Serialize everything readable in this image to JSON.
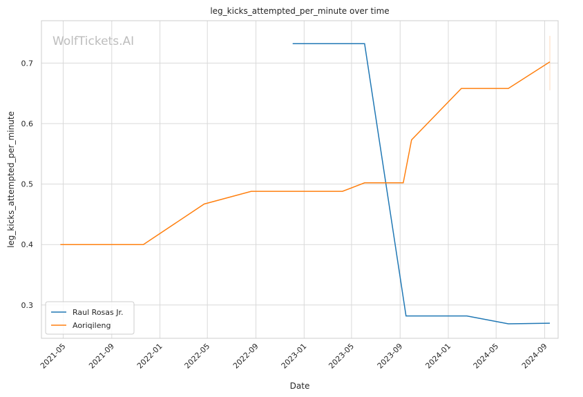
{
  "chart_data": {
    "type": "line",
    "title": "leg_kicks_attempted_per_minute over time",
    "xlabel": "Date",
    "ylabel": "leg_kicks_attempted_per_minute",
    "watermark": "WolfTickets.AI",
    "x_ticks": [
      "2021-05",
      "2021-09",
      "2022-01",
      "2022-05",
      "2022-09",
      "2023-01",
      "2023-05",
      "2023-09",
      "2024-01",
      "2024-05",
      "2024-09"
    ],
    "y_ticks": [
      "0.3",
      "0.4",
      "0.5",
      "0.6",
      "0.7"
    ],
    "ylim": [
      0.245,
      0.77
    ],
    "xlim": [
      "2021-03-07",
      "2024-10-05"
    ],
    "grid": true,
    "legend_position": "lower-left",
    "series": [
      {
        "name": "Raul Rosas Jr.",
        "color": "#1f77b4",
        "points": [
          {
            "x": "2022-12-03",
            "y": 0.732
          },
          {
            "x": "2023-06-03",
            "y": 0.732
          },
          {
            "x": "2023-09-16",
            "y": 0.282
          },
          {
            "x": "2024-02-17",
            "y": 0.282
          },
          {
            "x": "2024-06-01",
            "y": 0.269
          },
          {
            "x": "2024-09-14",
            "y": 0.27
          }
        ]
      },
      {
        "name": "Aoriqileng",
        "color": "#ff7f0e",
        "points": [
          {
            "x": "2021-04-24",
            "y": 0.4
          },
          {
            "x": "2021-11-20",
            "y": 0.4
          },
          {
            "x": "2022-04-23",
            "y": 0.467
          },
          {
            "x": "2022-08-20",
            "y": 0.488
          },
          {
            "x": "2023-04-08",
            "y": 0.488
          },
          {
            "x": "2023-06-03",
            "y": 0.502
          },
          {
            "x": "2023-09-09",
            "y": 0.502
          },
          {
            "x": "2023-09-30",
            "y": 0.573
          },
          {
            "x": "2024-02-03",
            "y": 0.658
          },
          {
            "x": "2024-06-01",
            "y": 0.658
          },
          {
            "x": "2024-09-14",
            "y": 0.702
          }
        ]
      }
    ]
  }
}
